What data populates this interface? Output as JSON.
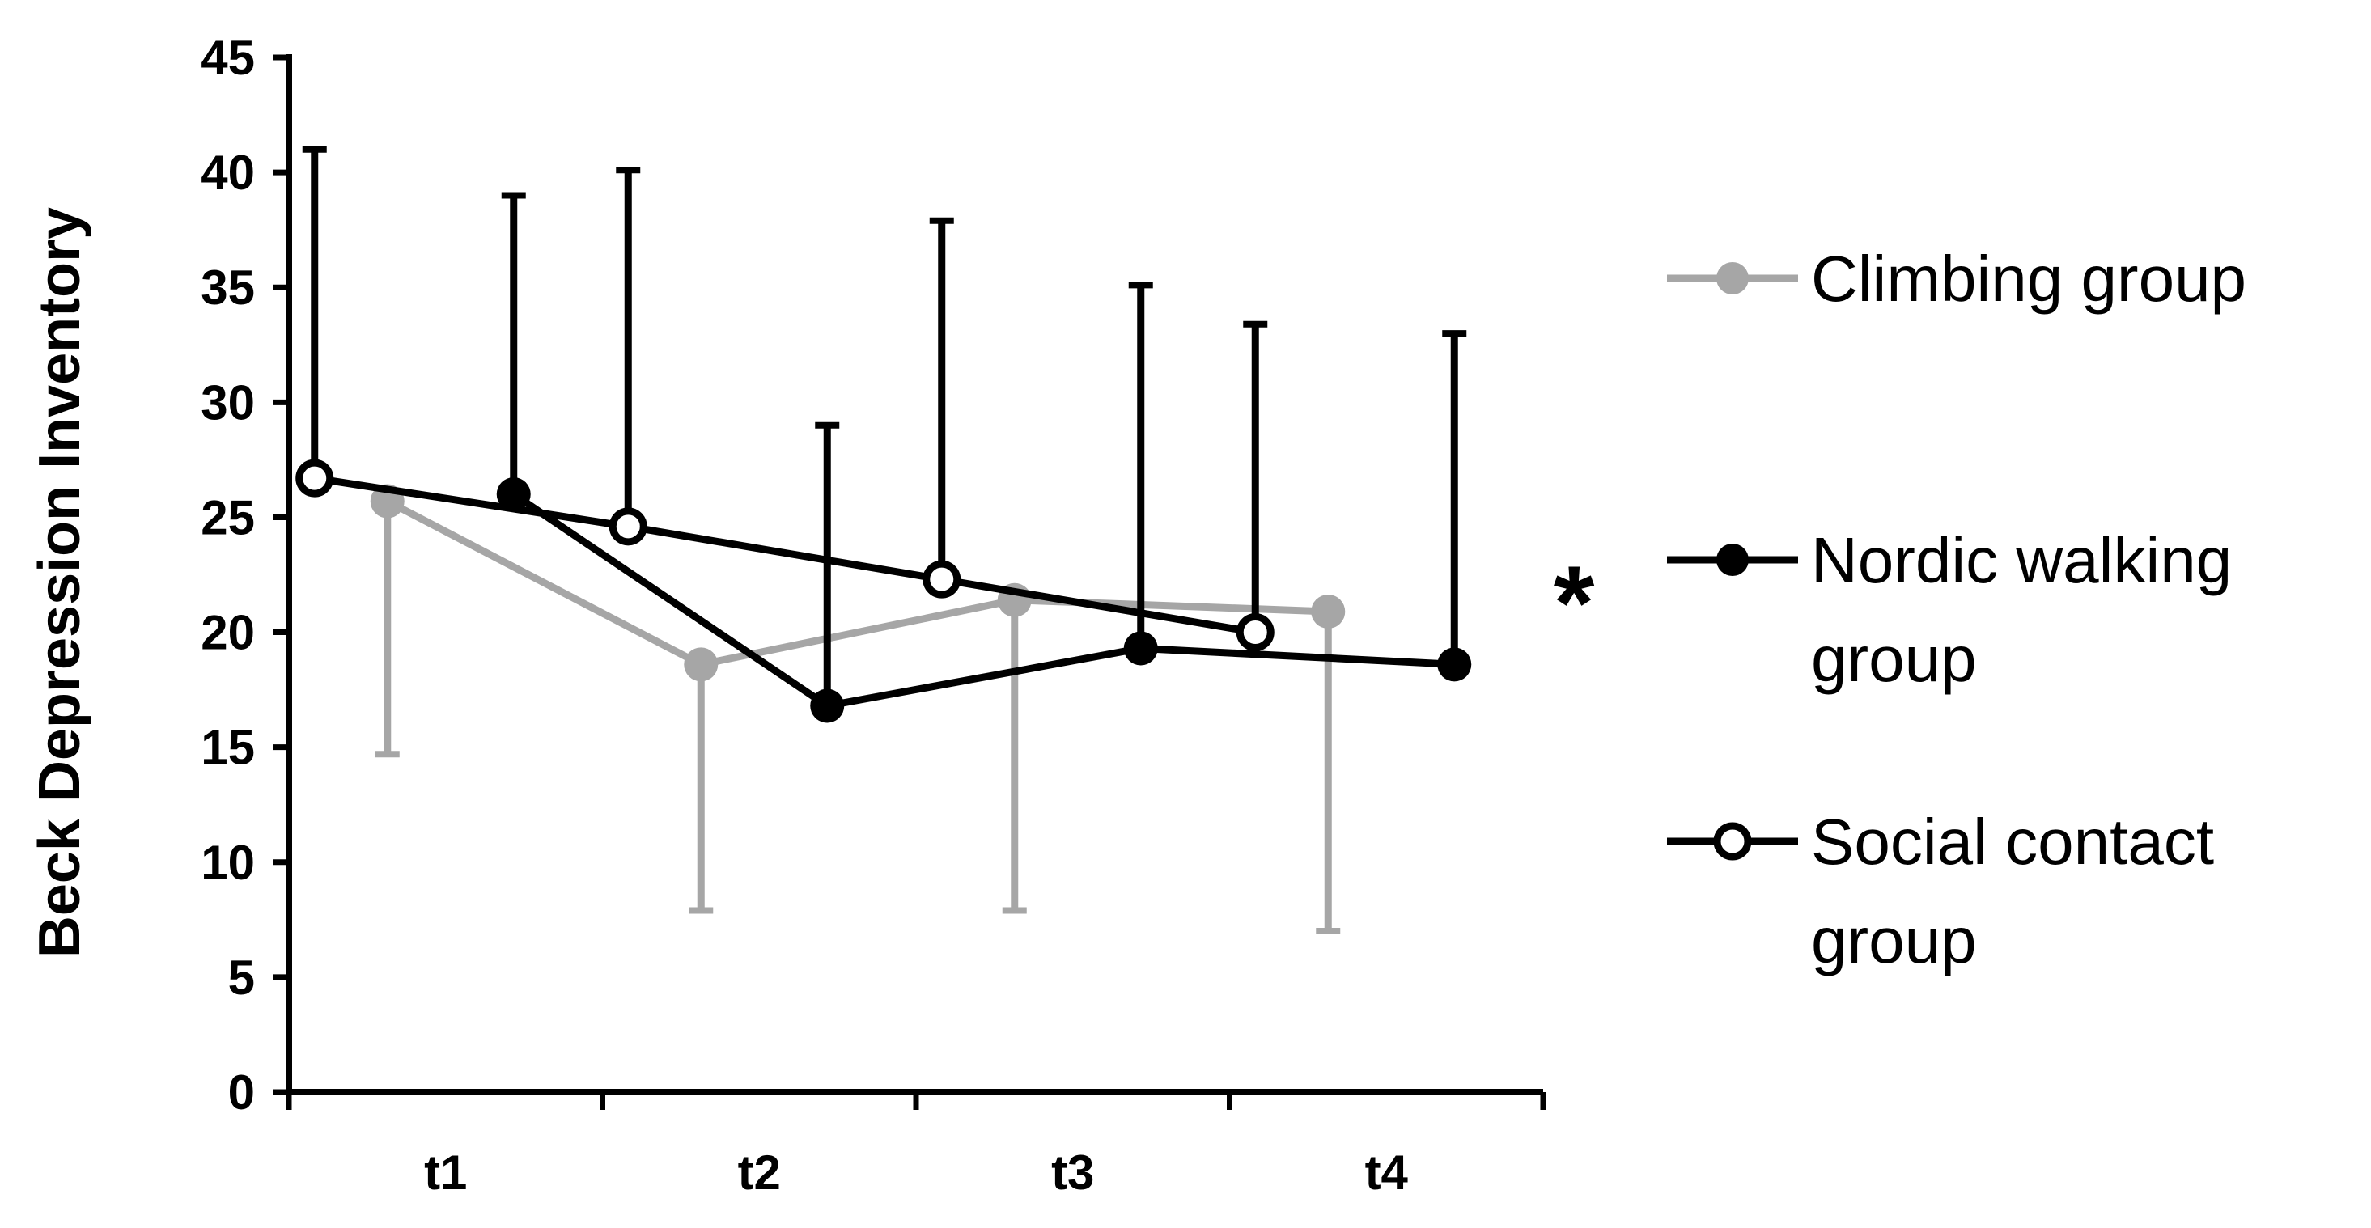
{
  "chart_data": {
    "type": "line",
    "title": "",
    "ylabel": "Beck Depression Inventory",
    "xlabel": "",
    "categories": [
      "t1",
      "t2",
      "t3",
      "t4"
    ],
    "ylim": [
      0,
      45
    ],
    "yticks": [
      0,
      5,
      10,
      15,
      20,
      25,
      30,
      35,
      40,
      45
    ],
    "grid": false,
    "legend_position": "right",
    "annotation": "*",
    "series": [
      {
        "name": "Climbing group",
        "color": "#a6a6a6",
        "marker": "filled-circle",
        "values": [
          25.7,
          18.6,
          21.4,
          20.9
        ],
        "error_bars": [
          {
            "low": 14.7
          },
          {
            "low": 7.9
          },
          {
            "low": 7.9
          },
          {
            "low": 7.0
          }
        ]
      },
      {
        "name": "Nordic walking group",
        "color": "#000000",
        "marker": "filled-circle",
        "values": [
          26.0,
          16.8,
          19.3,
          18.6
        ],
        "error_bars": [
          {
            "high": 39.0
          },
          {
            "high": 29.0
          },
          {
            "high": 35.1
          },
          {
            "high": 33.0
          }
        ]
      },
      {
        "name": "Social contact group",
        "color": "#000000",
        "marker": "open-circle",
        "values": [
          26.7,
          24.6,
          22.3,
          20.0
        ],
        "error_bars": [
          {
            "high": 41.0
          },
          {
            "high": 40.1
          },
          {
            "high": 37.9
          },
          {
            "high": 33.4
          }
        ]
      }
    ]
  },
  "legend": {
    "climbing_line1": "Climbing group",
    "nordic_line1": "Nordic walking",
    "nordic_line2": "group",
    "social_line1": "Social contact",
    "social_line2": "group"
  }
}
